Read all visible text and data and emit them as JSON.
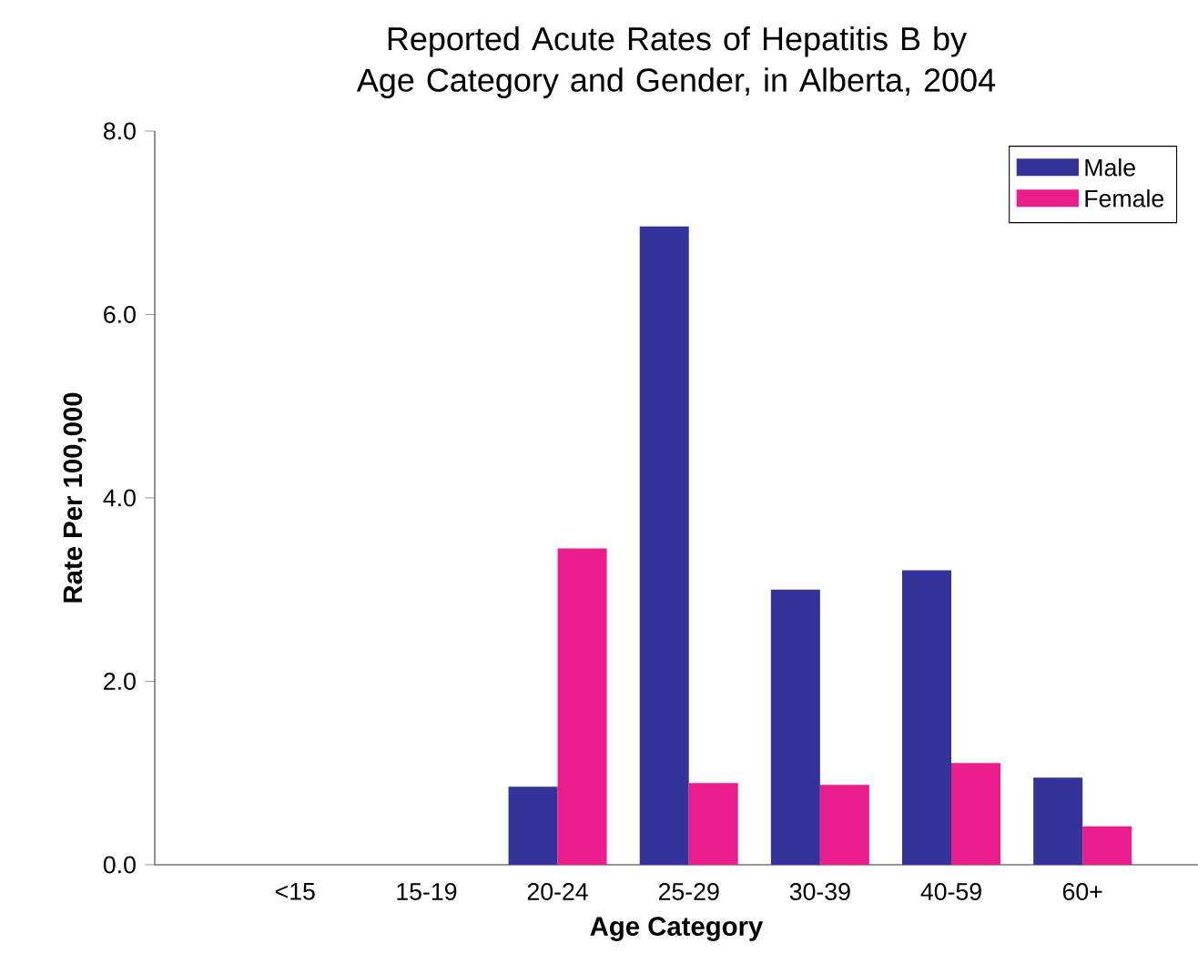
{
  "chart_data": {
    "type": "bar",
    "title": "Reported Acute Rates of Hepatitis B by Age Category and Gender, in Alberta, 2004",
    "xlabel": "Age Category",
    "ylabel": "Rate Per 100,000",
    "categories": [
      "<15",
      "15-19",
      "20-24",
      "25-29",
      "30-39",
      "40-59",
      "60+"
    ],
    "series": [
      {
        "name": "Male",
        "color": "#333399",
        "values": [
          0,
          0,
          0.85,
          6.96,
          3.0,
          3.21,
          0.95
        ]
      },
      {
        "name": "Female",
        "color": "#e91e8c",
        "values": [
          0,
          0,
          3.45,
          0.89,
          0.87,
          1.11,
          0.42
        ]
      }
    ],
    "ylim": [
      0,
      8
    ],
    "yticks": [
      {
        "value": 0,
        "label": "0.0"
      },
      {
        "value": 2,
        "label": "2.0"
      },
      {
        "value": 4,
        "label": "4.0"
      },
      {
        "value": 6,
        "label": "6.0"
      },
      {
        "value": 8,
        "label": "8.0"
      }
    ],
    "grid": false,
    "legend": "top right"
  }
}
